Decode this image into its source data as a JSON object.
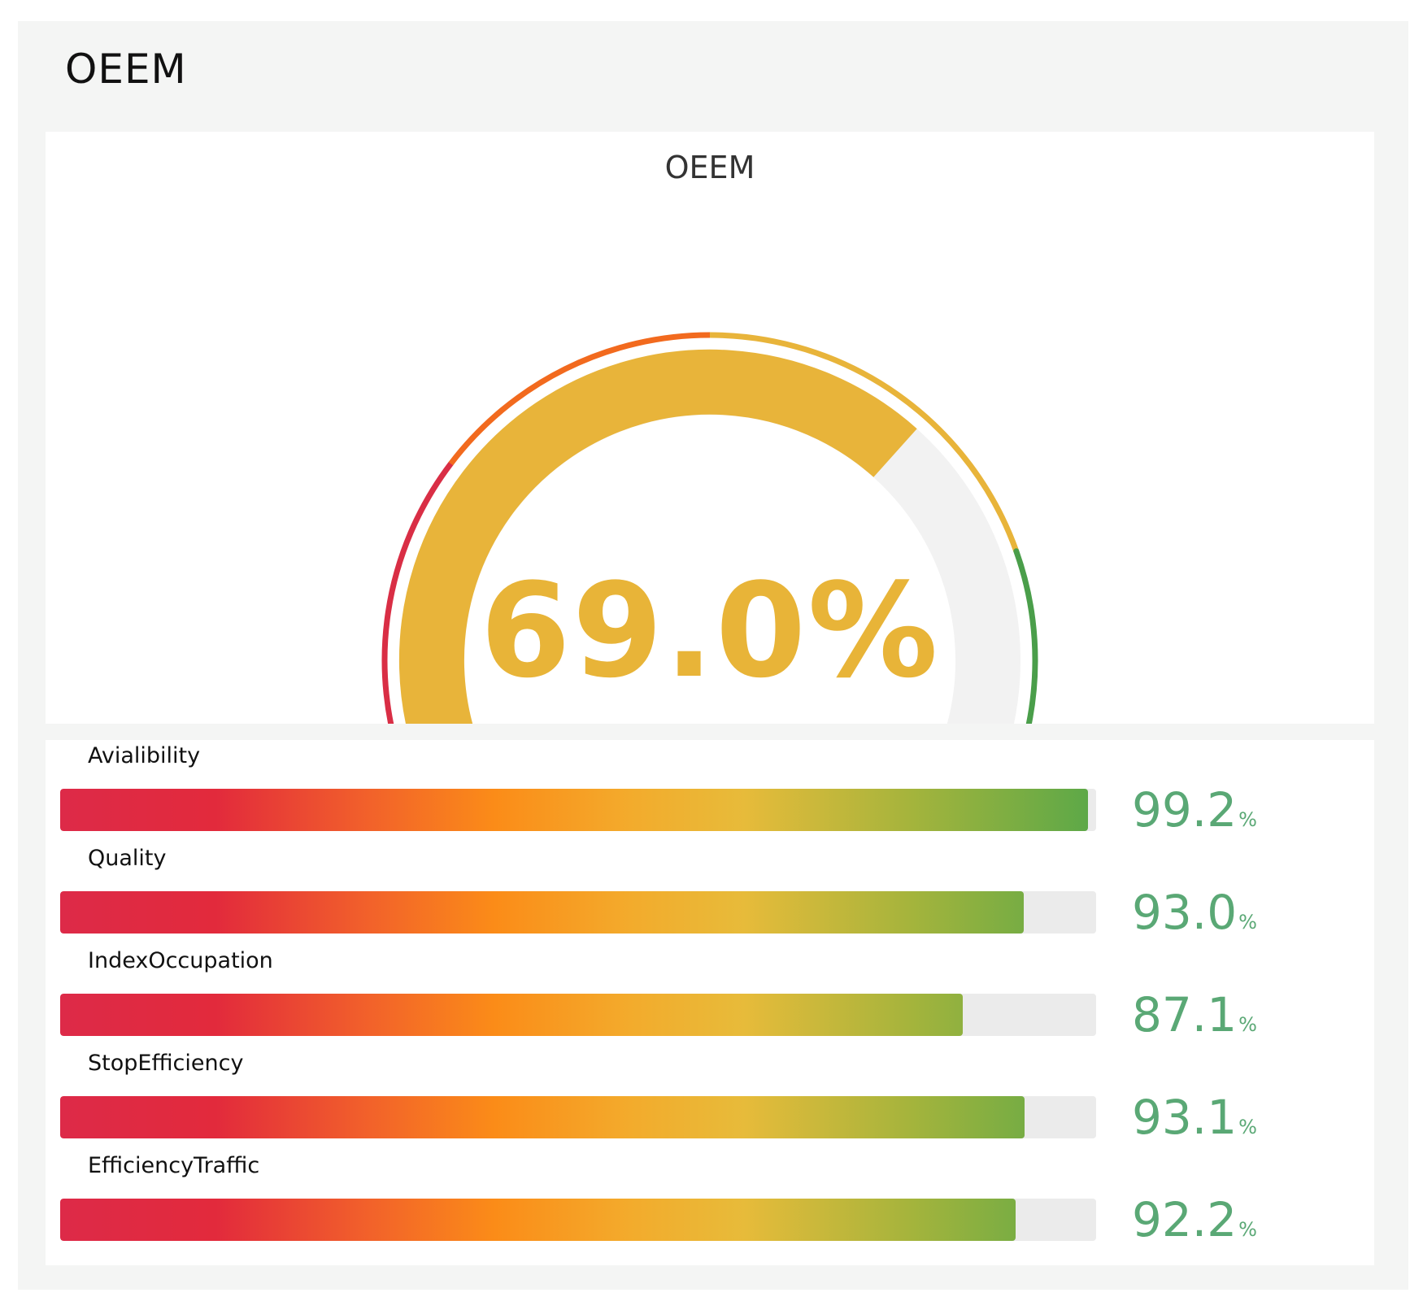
{
  "panel": {
    "title": "OEEM"
  },
  "gauge": {
    "title": "OEEM",
    "value_text": "69.0%",
    "value": 69.0,
    "min": 0,
    "max": 100,
    "colors": {
      "value_arc": "#e8b43a",
      "track": "#f2f2f2",
      "zone_red": "#d92e45",
      "zone_orange": "#f26a1e",
      "zone_yellow": "#e8b43a",
      "zone_green": "#4a9e4a",
      "value_text": "#e8b438"
    }
  },
  "kpis": [
    {
      "label": "Avialibility",
      "value_text": "99.2",
      "unit": "%",
      "value": 99.2
    },
    {
      "label": "Quality",
      "value_text": "93.0",
      "unit": "%",
      "value": 93.0
    },
    {
      "label": "IndexOccupation",
      "value_text": "87.1",
      "unit": "%",
      "value": 87.1
    },
    {
      "label": "StopEfficiency",
      "value_text": "93.1",
      "unit": "%",
      "value": 93.1
    },
    {
      "label": "EfficiencyTraffic",
      "value_text": "92.2",
      "unit": "%",
      "value": 92.2
    }
  ],
  "kpi_value_color": "#5aa875"
}
